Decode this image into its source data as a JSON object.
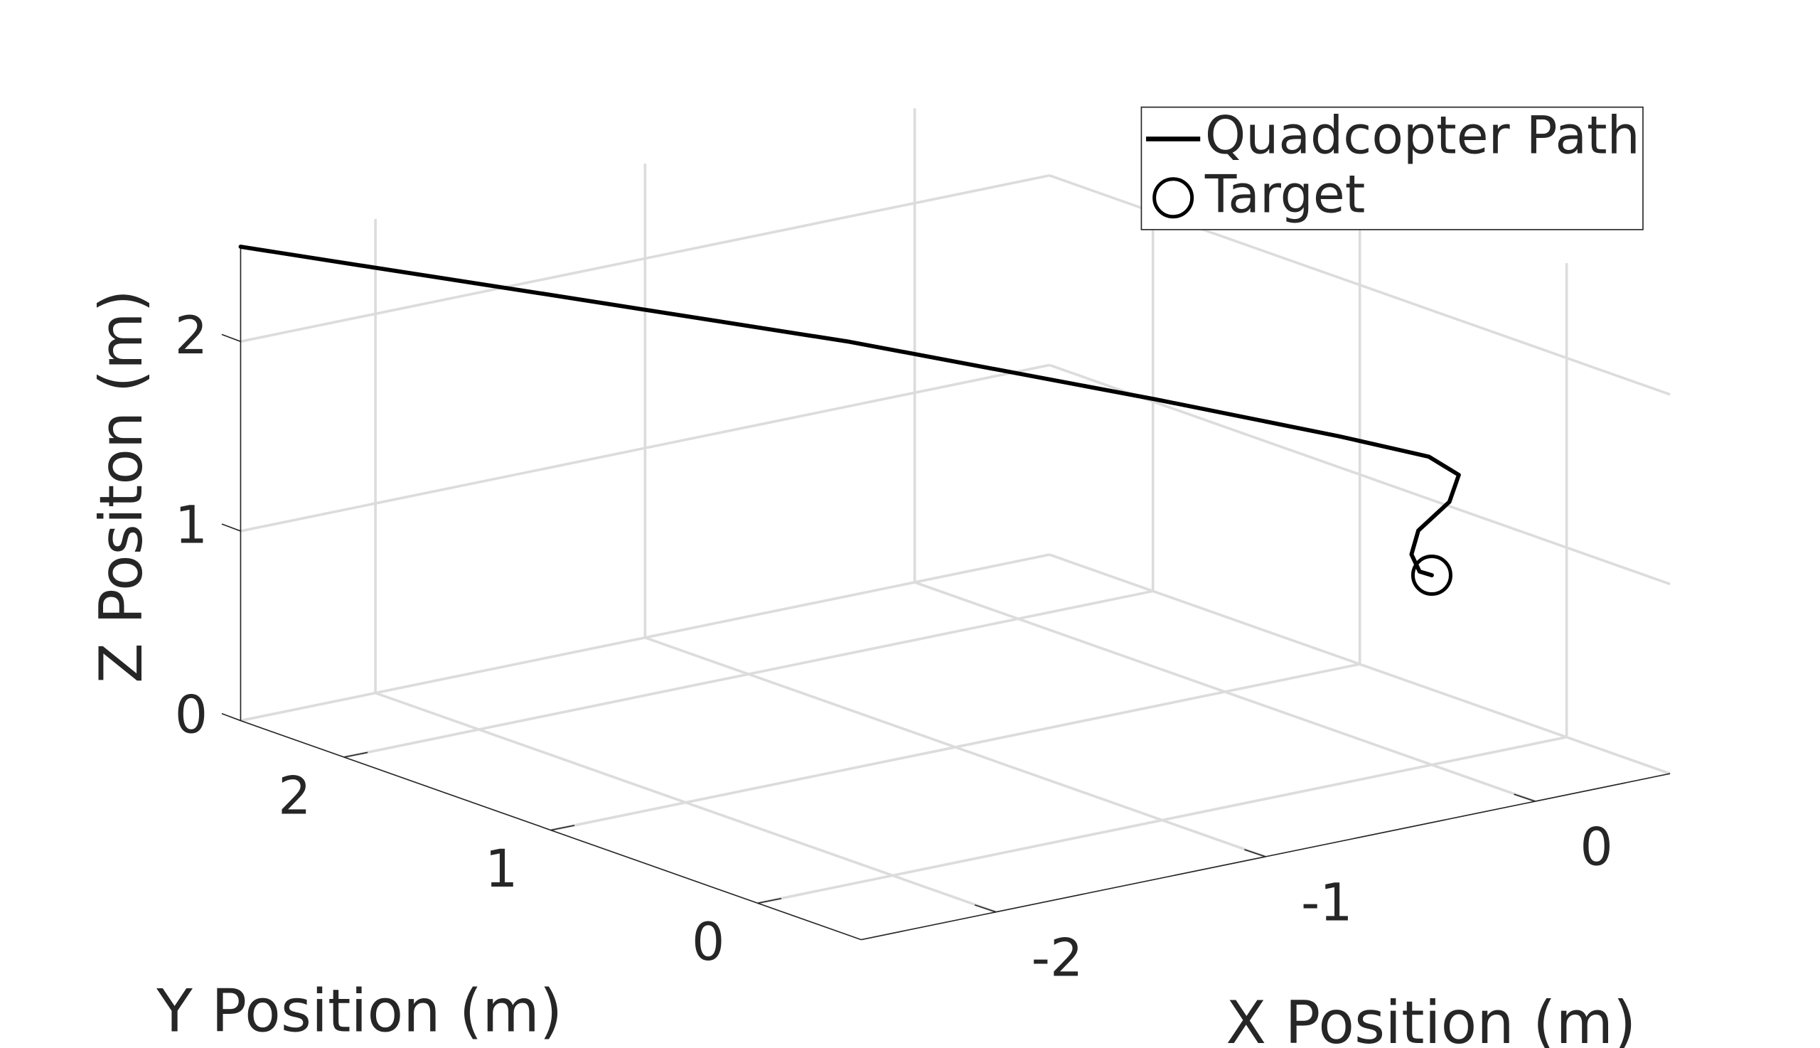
{
  "chart_data": {
    "type": "line3d",
    "xlabel": "X Position (m)",
    "ylabel": "Y Position (m)",
    "zlabel": "Z Positon (m)",
    "xlim": [
      -2.5,
      0.5
    ],
    "ylim": [
      -0.5,
      2.5
    ],
    "zlim": [
      0,
      2.5
    ],
    "xticks": [
      -2,
      -1,
      0
    ],
    "yticks": [
      0,
      1,
      2
    ],
    "zticks": [
      0,
      1,
      2
    ],
    "grid": true,
    "legend": "upper right",
    "series": [
      {
        "name": "Quadcopter Path",
        "color": "#000000",
        "kind": "line",
        "x": [
          -2.5,
          -2.24,
          -1.85,
          -1.2,
          -0.55,
          -0.15,
          0.05,
          0.1,
          0.05,
          -0.05,
          -0.06,
          -0.03,
          0
        ],
        "y": [
          2.5,
          2.25,
          1.88,
          1.25,
          0.62,
          0.25,
          0.08,
          0,
          -0.02,
          0,
          0.02,
          0.02,
          0
        ],
        "z": [
          2.5,
          2.42,
          2.3,
          2.1,
          1.85,
          1.68,
          1.58,
          1.5,
          1.38,
          1.25,
          1.12,
          1.02,
          1
        ]
      },
      {
        "name": "Target",
        "color": "#000000",
        "kind": "marker",
        "x": [
          0
        ],
        "y": [
          0
        ],
        "z": [
          1
        ]
      }
    ]
  }
}
